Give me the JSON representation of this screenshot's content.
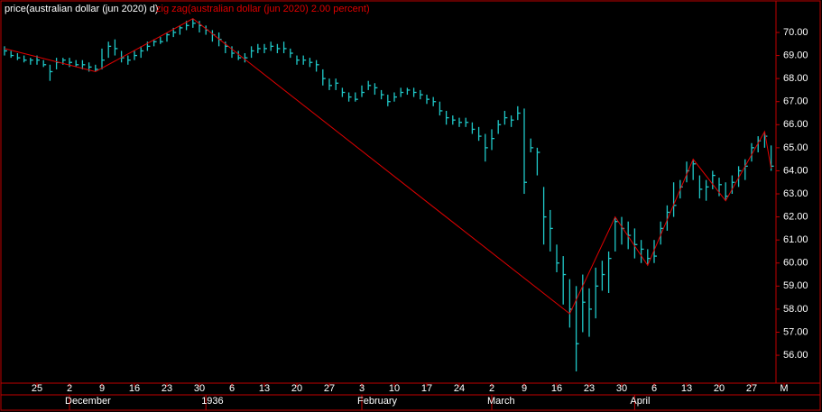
{
  "chart_data": {
    "type": "ohlc",
    "categories": [
      null,
      null,
      null,
      null,
      null,
      "25",
      null,
      null,
      null,
      null,
      "2",
      null,
      null,
      null,
      null,
      "9",
      null,
      null,
      null,
      null,
      "16",
      null,
      null,
      null,
      null,
      "23",
      null,
      null,
      null,
      null,
      "30",
      null,
      null,
      null,
      null,
      "6",
      null,
      null,
      null,
      null,
      "13",
      null,
      null,
      null,
      null,
      "20",
      null,
      null,
      null,
      null,
      "27",
      null,
      null,
      null,
      null,
      "3",
      null,
      null,
      null,
      null,
      "10",
      null,
      null,
      null,
      null,
      "17",
      null,
      null,
      null,
      null,
      "24",
      null,
      null,
      null,
      null,
      "2",
      null,
      null,
      null,
      null,
      "9",
      null,
      null,
      null,
      null,
      "16",
      null,
      null,
      null,
      null,
      "23",
      null,
      null,
      null,
      null,
      "30",
      null,
      null,
      null,
      null,
      "6",
      null,
      null,
      null,
      null,
      "13",
      null,
      null,
      null,
      null,
      "20",
      null,
      null,
      null,
      null,
      "27",
      null,
      null,
      null,
      null,
      "M"
    ],
    "month_labels": [
      {
        "value": 10,
        "label": "December"
      },
      {
        "value": 31,
        "label": "1936"
      },
      {
        "value": 55,
        "label": "February"
      },
      {
        "value": 75,
        "label": "March"
      },
      {
        "value": 97,
        "label": "April"
      }
    ],
    "series": [
      {
        "name": "price(australian dollar (jun 2020) d)",
        "color": "#1fc8c8",
        "high": [
          69.4,
          69.2,
          69.1,
          69.0,
          68.9,
          69.0,
          68.8,
          68.6,
          68.9,
          68.9,
          68.9,
          68.8,
          68.8,
          68.7,
          68.6,
          69.3,
          69.6,
          69.7,
          69.2,
          69.0,
          69.2,
          69.4,
          69.6,
          69.7,
          69.8,
          70.0,
          70.2,
          70.3,
          70.5,
          70.6,
          70.5,
          70.3,
          70.1,
          70.0,
          69.6,
          69.4,
          69.2,
          69.1,
          69.4,
          69.5,
          69.5,
          69.6,
          69.5,
          69.6,
          69.3,
          69.0,
          69.0,
          68.9,
          68.8,
          68.4,
          68.0,
          68.0,
          67.6,
          67.4,
          67.4,
          67.7,
          67.9,
          67.8,
          67.5,
          67.3,
          67.4,
          67.6,
          67.6,
          67.6,
          67.5,
          67.3,
          67.2,
          67.0,
          66.6,
          66.4,
          66.3,
          66.3,
          66.1,
          65.9,
          65.6,
          65.8,
          66.2,
          66.6,
          66.4,
          66.8,
          66.7,
          65.4,
          65.0,
          63.3,
          62.3,
          60.8,
          60.3,
          59.3,
          59.0,
          59.5,
          58.9,
          59.8,
          60.1,
          60.5,
          62.0,
          62.0,
          61.8,
          61.5,
          61.0,
          60.6,
          61.0,
          61.8,
          62.5,
          63.5,
          63.6,
          64.4,
          64.5,
          63.8,
          63.6,
          64.0,
          63.7,
          63.5,
          63.8,
          64.2,
          64.5,
          65.2,
          65.5,
          65.7,
          65.1,
          null,
          null
        ],
        "low": [
          69.0,
          68.9,
          68.8,
          68.7,
          68.6,
          68.6,
          68.5,
          67.9,
          68.4,
          68.6,
          68.5,
          68.5,
          68.4,
          68.3,
          68.3,
          68.4,
          68.9,
          69.0,
          68.7,
          68.6,
          68.8,
          68.9,
          69.2,
          69.4,
          69.5,
          69.6,
          69.8,
          69.9,
          70.1,
          70.2,
          70.0,
          69.9,
          69.6,
          69.4,
          69.1,
          68.9,
          68.8,
          68.7,
          68.9,
          69.1,
          69.1,
          69.2,
          69.1,
          69.1,
          68.9,
          68.6,
          68.6,
          68.5,
          68.3,
          67.7,
          67.5,
          67.5,
          67.2,
          67.0,
          67.0,
          67.2,
          67.5,
          67.3,
          67.1,
          66.8,
          67.0,
          67.2,
          67.3,
          67.2,
          67.1,
          66.9,
          66.8,
          66.4,
          66.0,
          66.0,
          65.9,
          65.9,
          65.6,
          65.3,
          64.4,
          64.9,
          65.6,
          66.0,
          65.9,
          66.2,
          63.0,
          64.8,
          63.8,
          60.8,
          60.5,
          59.6,
          58.2,
          57.2,
          55.3,
          57.0,
          56.8,
          57.6,
          58.8,
          58.7,
          60.5,
          60.8,
          60.6,
          60.2,
          60.0,
          59.9,
          60.0,
          60.8,
          61.4,
          62.0,
          62.8,
          63.5,
          63.6,
          62.8,
          62.7,
          63.2,
          62.9,
          62.7,
          63.0,
          63.3,
          63.6,
          64.4,
          64.8,
          65.0,
          64.0,
          null,
          null
        ],
        "close": [
          69.2,
          69.0,
          68.9,
          68.8,
          68.8,
          68.8,
          68.6,
          68.3,
          68.7,
          68.8,
          68.7,
          68.6,
          68.6,
          68.5,
          68.4,
          68.8,
          69.4,
          69.3,
          68.9,
          68.8,
          69.0,
          69.2,
          69.4,
          69.6,
          69.6,
          69.9,
          70.0,
          70.2,
          70.3,
          70.4,
          70.3,
          70.1,
          69.9,
          69.7,
          69.4,
          69.1,
          68.9,
          68.9,
          69.2,
          69.3,
          69.3,
          69.4,
          69.3,
          69.3,
          69.1,
          68.8,
          68.8,
          68.7,
          68.6,
          68.0,
          67.7,
          67.8,
          67.4,
          67.2,
          67.1,
          67.4,
          67.7,
          67.6,
          67.3,
          67.0,
          67.2,
          67.4,
          67.5,
          67.4,
          67.3,
          67.1,
          67.0,
          66.6,
          66.3,
          66.2,
          66.1,
          66.1,
          65.8,
          65.5,
          65.0,
          65.4,
          66.0,
          66.3,
          66.2,
          66.5,
          63.5,
          65.0,
          64.8,
          62.0,
          61.5,
          60.0,
          59.5,
          58.0,
          56.5,
          58.3,
          58.0,
          59.0,
          59.5,
          60.2,
          61.8,
          61.5,
          61.2,
          60.8,
          60.6,
          60.2,
          60.3,
          61.5,
          62.2,
          62.5,
          63.3,
          64.0,
          64.3,
          63.2,
          63.3,
          63.8,
          63.4,
          62.9,
          63.5,
          64.0,
          64.2,
          65.0,
          65.3,
          65.5,
          64.2,
          null,
          null
        ]
      },
      {
        "name": "zig zag(australian dollar (jun 2020) 2.00 percent)",
        "color": "#e00000",
        "x": [
          0,
          14,
          29,
          87,
          94,
          99,
          106,
          111,
          117,
          118
        ],
        "values": [
          69.3,
          68.3,
          70.6,
          57.8,
          62.0,
          59.9,
          64.5,
          62.7,
          65.7,
          64.1
        ]
      }
    ],
    "ylim": [
      54.79,
      71.29
    ],
    "yticks": [
      {
        "value": 56,
        "label": "56.00"
      },
      {
        "value": 57,
        "label": "57.00"
      },
      {
        "value": 58,
        "label": "58.00"
      },
      {
        "value": 59,
        "label": "59.00"
      },
      {
        "value": 60,
        "label": "60.00"
      },
      {
        "value": 61,
        "label": "61.00"
      },
      {
        "value": 62,
        "label": "62.00"
      },
      {
        "value": 63,
        "label": "63.00"
      },
      {
        "value": 64,
        "label": "64.00"
      },
      {
        "value": 65,
        "label": "65.00"
      },
      {
        "value": 66,
        "label": "66.00"
      },
      {
        "value": 67,
        "label": "67.00"
      },
      {
        "value": 68,
        "label": "68.00"
      },
      {
        "value": 69,
        "label": "69.00"
      },
      {
        "value": 70,
        "label": "70.00"
      }
    ]
  }
}
